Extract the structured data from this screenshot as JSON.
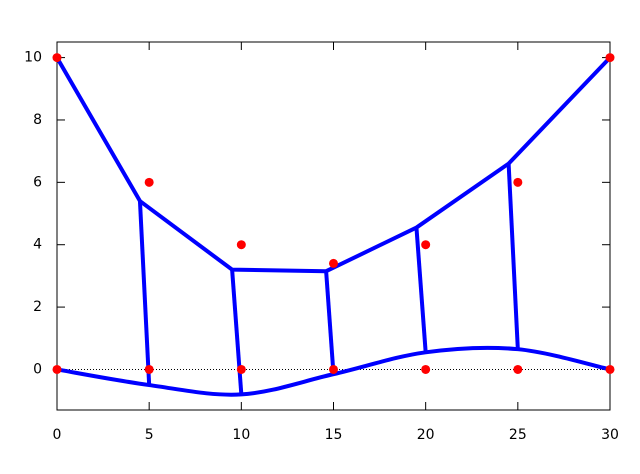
{
  "chart_data": {
    "type": "line",
    "xlim": [
      0,
      30
    ],
    "ylim": [
      -1.3,
      10.5
    ],
    "xticks": [
      0,
      5,
      10,
      15,
      20,
      25,
      30
    ],
    "yticks": [
      0,
      2,
      4,
      6,
      8,
      10
    ],
    "zero_line": true,
    "series": [
      {
        "color": "#0000ff",
        "mode": "lines",
        "x": [
          0,
          4.5,
          9.5,
          14.6,
          19.5,
          24.5,
          30
        ],
        "values": [
          10,
          5.4,
          3.2,
          3.15,
          4.55,
          6.6,
          10
        ]
      },
      {
        "color": "#0000ff",
        "mode": "lines",
        "smooth": true,
        "x": [
          0,
          5,
          10,
          15,
          20,
          25,
          30
        ],
        "values": [
          0,
          -0.5,
          -0.8,
          -0.15,
          0.55,
          0.65,
          0
        ]
      },
      {
        "color": "#0000ff",
        "mode": "lines",
        "x": [
          4.5,
          5
        ],
        "values": [
          5.4,
          -0.5
        ]
      },
      {
        "color": "#0000ff",
        "mode": "lines",
        "x": [
          9.5,
          10
        ],
        "values": [
          3.2,
          -0.8
        ]
      },
      {
        "color": "#0000ff",
        "mode": "lines",
        "x": [
          14.6,
          15
        ],
        "values": [
          3.15,
          -0.15
        ]
      },
      {
        "color": "#0000ff",
        "mode": "lines",
        "x": [
          19.5,
          20
        ],
        "values": [
          4.55,
          0.55
        ]
      },
      {
        "color": "#0000ff",
        "mode": "lines",
        "x": [
          24.5,
          25
        ],
        "values": [
          6.6,
          0.65
        ]
      },
      {
        "color": "#ff0000",
        "mode": "markers",
        "x": [
          0,
          5,
          10,
          15,
          20,
          25,
          30
        ],
        "values": [
          10,
          6,
          4,
          3.4,
          4,
          6,
          10
        ]
      },
      {
        "color": "#ff0000",
        "mode": "markers",
        "x": [
          0,
          5,
          10,
          15,
          20,
          25,
          30
        ],
        "values": [
          0,
          0,
          0,
          0,
          0,
          0,
          0
        ]
      }
    ]
  }
}
